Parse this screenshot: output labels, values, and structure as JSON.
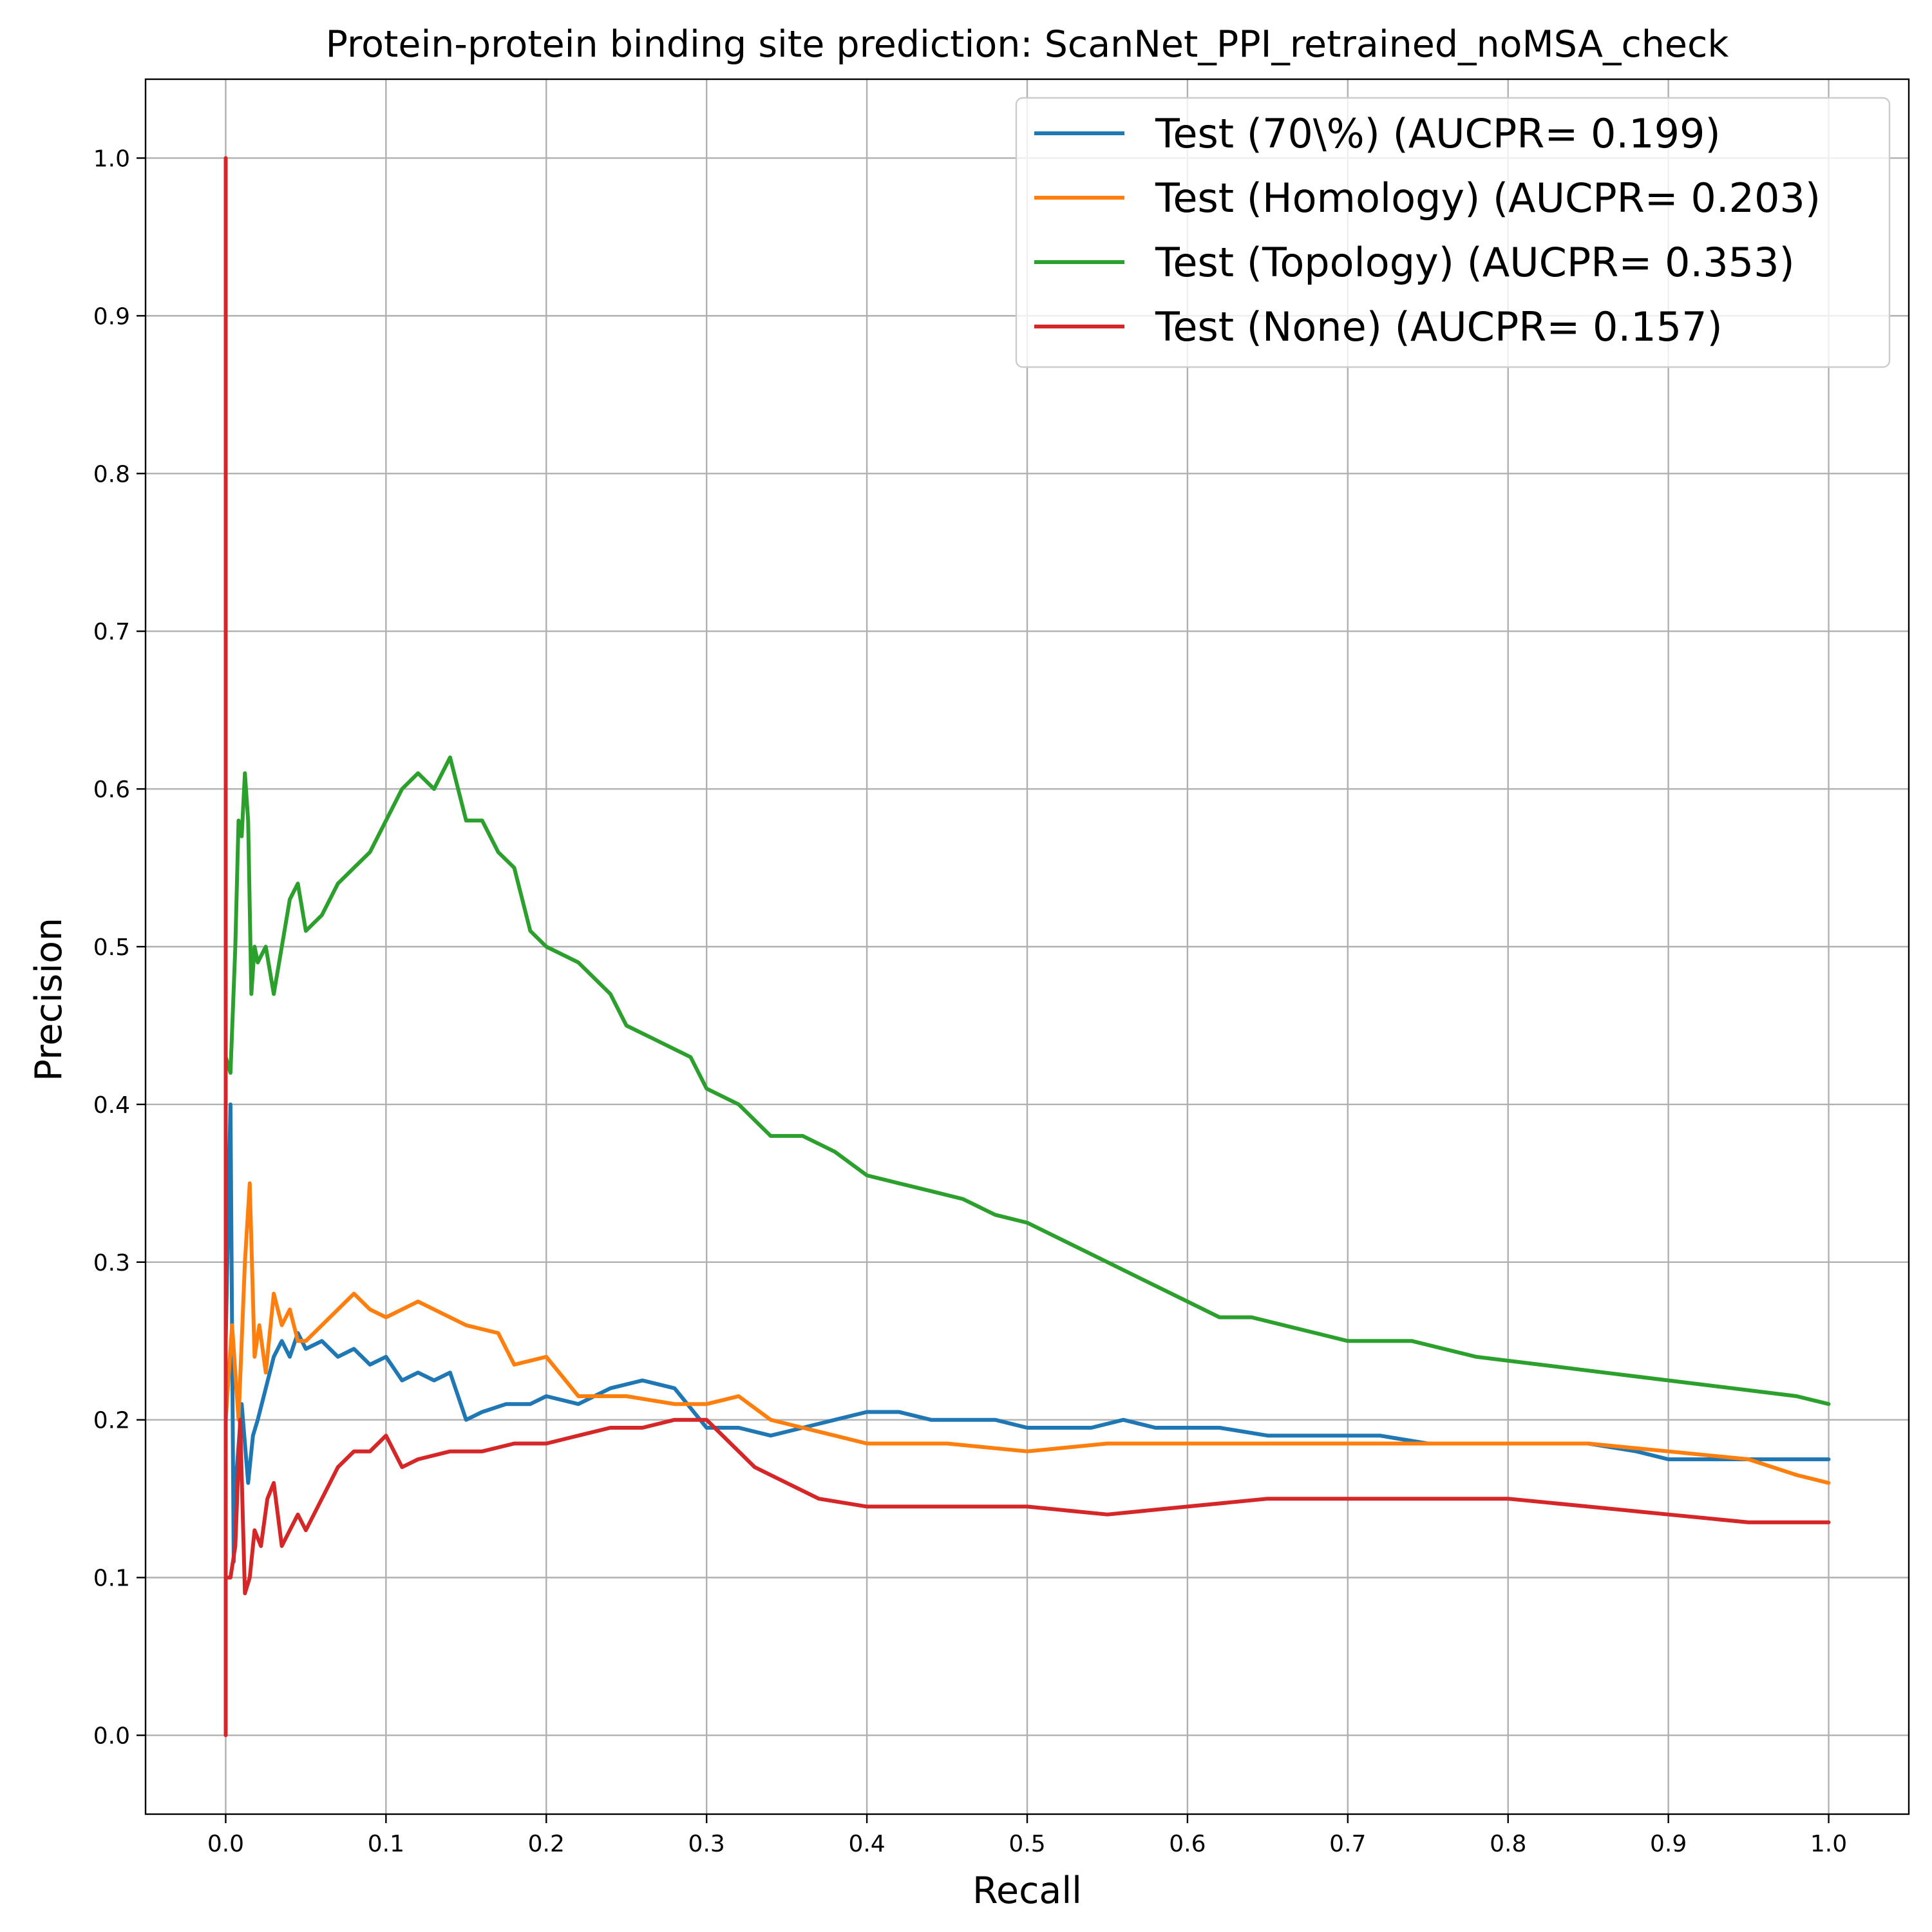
{
  "chart_data": {
    "type": "line",
    "title": "Protein-protein binding site prediction: ScanNet_PPI_retrained_noMSA_check",
    "xlabel": "Recall",
    "ylabel": "Precision",
    "xlim": [
      -0.05,
      1.05
    ],
    "ylim": [
      -0.05,
      1.05
    ],
    "xticks": [
      "0.0",
      "0.1",
      "0.2",
      "0.3",
      "0.4",
      "0.5",
      "0.6",
      "0.7",
      "0.8",
      "0.9",
      "1.0"
    ],
    "yticks": [
      "0.0",
      "0.1",
      "0.2",
      "0.3",
      "0.4",
      "0.5",
      "0.6",
      "0.7",
      "0.8",
      "0.9",
      "1.0"
    ],
    "grid": true,
    "legend_position": "upper-right",
    "series": [
      {
        "name": "Test (70\\%) (AUCPR= 0.199)",
        "color": "#1f77b4",
        "x": [
          0.0,
          0.003,
          0.005,
          0.007,
          0.01,
          0.014,
          0.017,
          0.02,
          0.025,
          0.03,
          0.035,
          0.04,
          0.045,
          0.05,
          0.06,
          0.07,
          0.08,
          0.09,
          0.1,
          0.11,
          0.12,
          0.13,
          0.14,
          0.15,
          0.16,
          0.175,
          0.19,
          0.2,
          0.22,
          0.24,
          0.26,
          0.28,
          0.3,
          0.32,
          0.34,
          0.36,
          0.38,
          0.4,
          0.42,
          0.44,
          0.46,
          0.48,
          0.5,
          0.52,
          0.54,
          0.56,
          0.58,
          0.6,
          0.62,
          0.65,
          0.68,
          0.7,
          0.72,
          0.75,
          0.8,
          0.85,
          0.88,
          0.9,
          0.93,
          0.96,
          1.0
        ],
        "y": [
          0.25,
          0.4,
          0.11,
          0.17,
          0.21,
          0.16,
          0.19,
          0.2,
          0.22,
          0.24,
          0.25,
          0.24,
          0.255,
          0.245,
          0.25,
          0.24,
          0.245,
          0.235,
          0.24,
          0.225,
          0.23,
          0.225,
          0.23,
          0.2,
          0.205,
          0.21,
          0.21,
          0.215,
          0.21,
          0.22,
          0.225,
          0.22,
          0.195,
          0.195,
          0.19,
          0.195,
          0.2,
          0.205,
          0.205,
          0.2,
          0.2,
          0.2,
          0.195,
          0.195,
          0.195,
          0.2,
          0.195,
          0.195,
          0.195,
          0.19,
          0.19,
          0.19,
          0.19,
          0.185,
          0.185,
          0.185,
          0.18,
          0.175,
          0.175,
          0.175,
          0.175
        ]
      },
      {
        "name": "Test (Homology) (AUCPR= 0.203)",
        "color": "#ff7f0e",
        "x": [
          0.0,
          0.004,
          0.008,
          0.012,
          0.015,
          0.018,
          0.021,
          0.025,
          0.03,
          0.035,
          0.04,
          0.045,
          0.05,
          0.06,
          0.07,
          0.08,
          0.09,
          0.1,
          0.12,
          0.13,
          0.15,
          0.17,
          0.18,
          0.2,
          0.22,
          0.25,
          0.28,
          0.3,
          0.32,
          0.34,
          0.36,
          0.38,
          0.4,
          0.45,
          0.5,
          0.55,
          0.6,
          0.65,
          0.7,
          0.75,
          0.8,
          0.85,
          0.9,
          0.95,
          0.98,
          1.0
        ],
        "y": [
          0.2,
          0.26,
          0.2,
          0.3,
          0.35,
          0.24,
          0.26,
          0.23,
          0.28,
          0.26,
          0.27,
          0.25,
          0.25,
          0.26,
          0.27,
          0.28,
          0.27,
          0.265,
          0.275,
          0.27,
          0.26,
          0.255,
          0.235,
          0.24,
          0.215,
          0.215,
          0.21,
          0.21,
          0.215,
          0.2,
          0.195,
          0.19,
          0.185,
          0.185,
          0.18,
          0.185,
          0.185,
          0.185,
          0.185,
          0.185,
          0.185,
          0.185,
          0.18,
          0.175,
          0.165,
          0.16
        ]
      },
      {
        "name": "Test (Topology) (AUCPR= 0.353)",
        "color": "#2ca02c",
        "x": [
          0.0,
          0.003,
          0.006,
          0.008,
          0.01,
          0.012,
          0.014,
          0.016,
          0.018,
          0.02,
          0.025,
          0.03,
          0.035,
          0.04,
          0.045,
          0.05,
          0.06,
          0.07,
          0.08,
          0.09,
          0.1,
          0.11,
          0.12,
          0.13,
          0.14,
          0.15,
          0.16,
          0.17,
          0.18,
          0.19,
          0.2,
          0.22,
          0.24,
          0.25,
          0.27,
          0.29,
          0.3,
          0.32,
          0.34,
          0.36,
          0.38,
          0.4,
          0.42,
          0.44,
          0.46,
          0.48,
          0.5,
          0.52,
          0.54,
          0.56,
          0.58,
          0.6,
          0.62,
          0.64,
          0.66,
          0.68,
          0.7,
          0.74,
          0.78,
          0.82,
          0.86,
          0.9,
          0.94,
          0.98,
          1.0
        ],
        "y": [
          0.43,
          0.42,
          0.5,
          0.58,
          0.57,
          0.61,
          0.58,
          0.47,
          0.5,
          0.49,
          0.5,
          0.47,
          0.5,
          0.53,
          0.54,
          0.51,
          0.52,
          0.54,
          0.55,
          0.56,
          0.58,
          0.6,
          0.61,
          0.6,
          0.62,
          0.58,
          0.58,
          0.56,
          0.55,
          0.51,
          0.5,
          0.49,
          0.47,
          0.45,
          0.44,
          0.43,
          0.41,
          0.4,
          0.38,
          0.38,
          0.37,
          0.355,
          0.35,
          0.345,
          0.34,
          0.33,
          0.325,
          0.315,
          0.305,
          0.295,
          0.285,
          0.275,
          0.265,
          0.265,
          0.26,
          0.255,
          0.25,
          0.25,
          0.24,
          0.235,
          0.23,
          0.225,
          0.22,
          0.215,
          0.21
        ]
      },
      {
        "name": "Test (None) (AUCPR= 0.157)",
        "color": "#d62728",
        "x": [
          0.0,
          0.0,
          0.0,
          0.003,
          0.006,
          0.009,
          0.012,
          0.015,
          0.018,
          0.022,
          0.026,
          0.03,
          0.035,
          0.04,
          0.045,
          0.05,
          0.06,
          0.07,
          0.08,
          0.09,
          0.1,
          0.11,
          0.12,
          0.14,
          0.16,
          0.18,
          0.2,
          0.22,
          0.24,
          0.26,
          0.28,
          0.3,
          0.31,
          0.33,
          0.35,
          0.37,
          0.4,
          0.45,
          0.5,
          0.55,
          0.6,
          0.65,
          0.7,
          0.75,
          0.8,
          0.85,
          0.9,
          0.95,
          1.0
        ],
        "y": [
          1.0,
          0.0,
          0.1,
          0.1,
          0.12,
          0.2,
          0.09,
          0.1,
          0.13,
          0.12,
          0.15,
          0.16,
          0.12,
          0.13,
          0.14,
          0.13,
          0.15,
          0.17,
          0.18,
          0.18,
          0.19,
          0.17,
          0.175,
          0.18,
          0.18,
          0.185,
          0.185,
          0.19,
          0.195,
          0.195,
          0.2,
          0.2,
          0.19,
          0.17,
          0.16,
          0.15,
          0.145,
          0.145,
          0.145,
          0.14,
          0.145,
          0.15,
          0.15,
          0.15,
          0.15,
          0.145,
          0.14,
          0.135,
          0.135
        ]
      }
    ]
  }
}
